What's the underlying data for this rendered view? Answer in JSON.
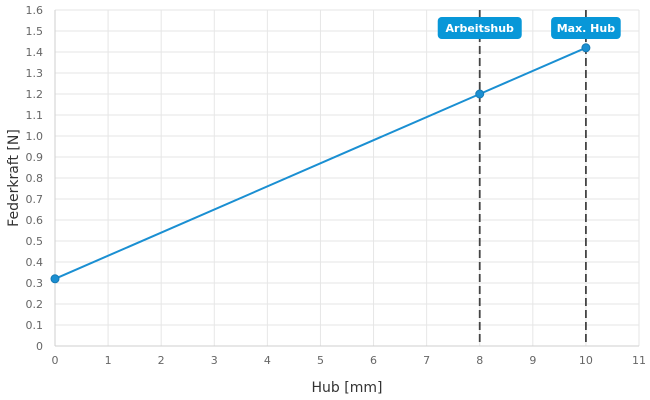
{
  "chart_data": {
    "type": "line",
    "xlabel": "Hub [mm]",
    "ylabel": "Federkraft [N]",
    "xlim": [
      0,
      11
    ],
    "ylim": [
      0,
      1.6
    ],
    "x_ticks": [
      "0",
      "1",
      "2",
      "3",
      "4",
      "5",
      "6",
      "7",
      "8",
      "9",
      "10",
      "11"
    ],
    "y_ticks": [
      "0",
      "0.1",
      "0.2",
      "0.3",
      "0.4",
      "0.5",
      "0.6",
      "0.7",
      "0.8",
      "0.9",
      "1.0",
      "1.1",
      "1.2",
      "1.3",
      "1.4",
      "1.5",
      "1.6"
    ],
    "grid": true,
    "colors": {
      "line": "#1a8fd2",
      "point": "#1a8fd2",
      "marker_label_bg": "#0897d8",
      "marker_line": "#444444"
    },
    "series": [
      {
        "x": [
          0,
          8,
          10
        ],
        "y": [
          0.32,
          1.2,
          1.42
        ]
      }
    ],
    "markers": [
      {
        "x": 8,
        "label": "Arbeitshub"
      },
      {
        "x": 10,
        "label": "Max. Hub"
      }
    ]
  }
}
